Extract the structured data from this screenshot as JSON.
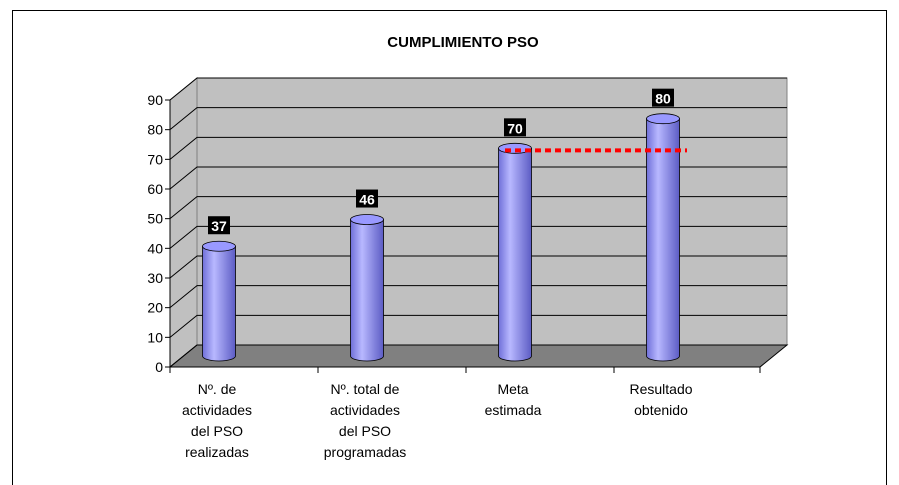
{
  "chart_data": {
    "type": "bar3d",
    "title": "CUMPLIMIENTO PSO",
    "categories": [
      "Nº. de\nactividades\ndel PSO\nrealizadas",
      "Nº. total de\nactividades\ndel PSO\nprogramadas",
      "Meta\nestimada",
      "Resultado\nobtenido"
    ],
    "values": [
      37,
      46,
      70,
      80
    ],
    "color": "#9999ff",
    "ylim": [
      0,
      90
    ],
    "yticks": [
      0,
      10,
      20,
      30,
      40,
      50,
      60,
      70,
      80,
      90
    ],
    "grid": true
  }
}
